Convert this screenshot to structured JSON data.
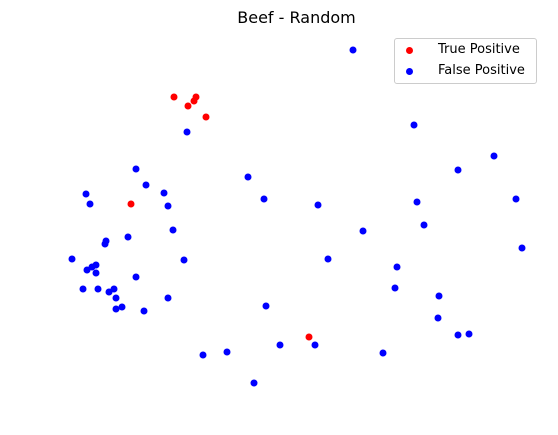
{
  "chart_data": {
    "type": "scatter",
    "title": "Beef - Random",
    "xlabel": "",
    "ylabel": "",
    "axes_visible": false,
    "grid": false,
    "legend_position": "top-right",
    "series": [
      {
        "name": "True Positive",
        "color": "#ff0000",
        "points": [
          [
            174,
            97
          ],
          [
            196,
            97
          ],
          [
            194,
            101
          ],
          [
            188,
            106
          ],
          [
            206,
            117
          ],
          [
            131,
            204
          ],
          [
            309,
            337
          ]
        ]
      },
      {
        "name": "False Positive",
        "color": "#0000ff",
        "points": [
          [
            353,
            50
          ],
          [
            187,
            132
          ],
          [
            414,
            125
          ],
          [
            494,
            156
          ],
          [
            458,
            170
          ],
          [
            136,
            169
          ],
          [
            248,
            177
          ],
          [
            146,
            185
          ],
          [
            164,
            193
          ],
          [
            86,
            194
          ],
          [
            90,
            204
          ],
          [
            168,
            206
          ],
          [
            264,
            199
          ],
          [
            318,
            205
          ],
          [
            417,
            202
          ],
          [
            516,
            199
          ],
          [
            173,
            230
          ],
          [
            128,
            237
          ],
          [
            106,
            241
          ],
          [
            105,
            244
          ],
          [
            363,
            231
          ],
          [
            424,
            225
          ],
          [
            72,
            259
          ],
          [
            184,
            260
          ],
          [
            328,
            259
          ],
          [
            522,
            248
          ],
          [
            96,
            265
          ],
          [
            92,
            267
          ],
          [
            87,
            270
          ],
          [
            96,
            273
          ],
          [
            397,
            267
          ],
          [
            136,
            277
          ],
          [
            83,
            289
          ],
          [
            98,
            289
          ],
          [
            114,
            289
          ],
          [
            109,
            292
          ],
          [
            116,
            298
          ],
          [
            168,
            298
          ],
          [
            395,
            288
          ],
          [
            439,
            296
          ],
          [
            122,
            307
          ],
          [
            116,
            309
          ],
          [
            144,
            311
          ],
          [
            266,
            306
          ],
          [
            438,
            318
          ],
          [
            458,
            335
          ],
          [
            469,
            334
          ],
          [
            280,
            345
          ],
          [
            315,
            345
          ],
          [
            227,
            352
          ],
          [
            203,
            355
          ],
          [
            383,
            353
          ],
          [
            254,
            383
          ]
        ]
      }
    ]
  }
}
